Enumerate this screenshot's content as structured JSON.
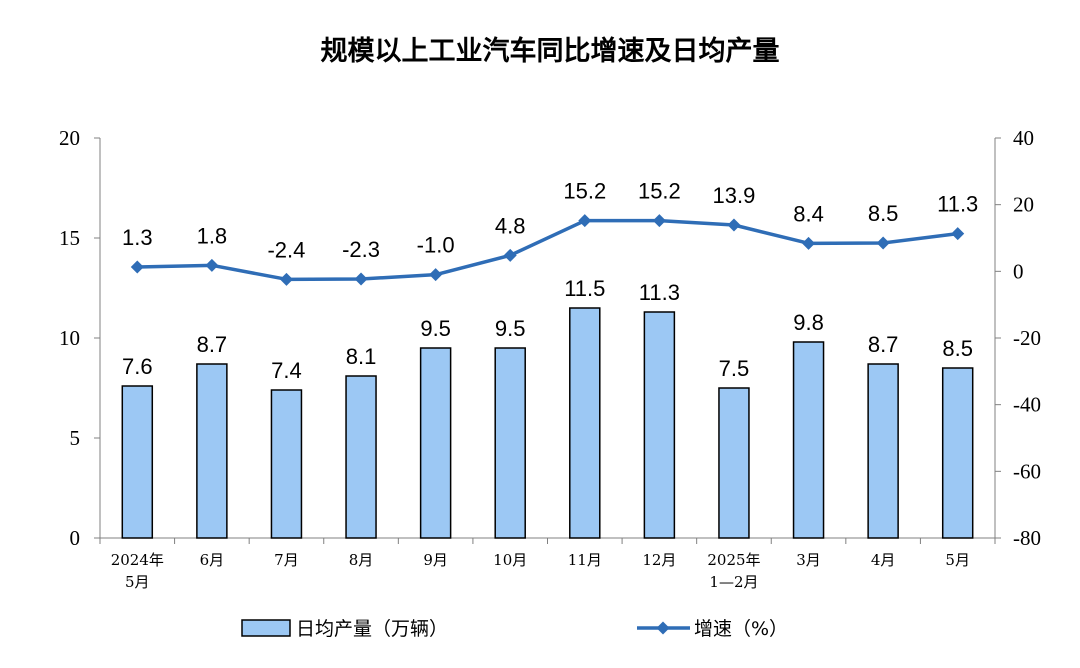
{
  "chart_data": {
    "type": "bar+line",
    "title": "规模以上工业汽车同比增速及日均产量",
    "categories": [
      [
        "2024年",
        "5月"
      ],
      [
        "6月"
      ],
      [
        "7月"
      ],
      [
        "8月"
      ],
      [
        "9月"
      ],
      [
        "10月"
      ],
      [
        "11月"
      ],
      [
        "12月"
      ],
      [
        "2025年",
        "1—2月"
      ],
      [
        "3月"
      ],
      [
        "4月"
      ],
      [
        "5月"
      ]
    ],
    "series": [
      {
        "name": "日均产量（万辆）",
        "type": "bar",
        "axis": "left",
        "values": [
          7.6,
          8.7,
          7.4,
          8.1,
          9.5,
          9.5,
          11.5,
          11.3,
          7.5,
          9.8,
          8.7,
          8.5
        ],
        "labels": [
          "7.6",
          "8.7",
          "7.4",
          "8.1",
          "9.5",
          "9.5",
          "11.5",
          "11.3",
          "7.5",
          "9.8",
          "8.7",
          "8.5"
        ]
      },
      {
        "name": "增速（%）",
        "type": "line",
        "axis": "right",
        "values": [
          1.3,
          1.8,
          -2.4,
          -2.3,
          -1.0,
          4.8,
          15.2,
          15.2,
          13.9,
          8.4,
          8.5,
          11.3
        ],
        "labels": [
          "1.3",
          "1.8",
          "-2.4",
          "-2.3",
          "-1.0",
          "4.8",
          "15.2",
          "15.2",
          "13.9",
          "8.4",
          "8.5",
          "11.3"
        ]
      }
    ],
    "y_left": {
      "min": 0,
      "max": 20,
      "ticks": [
        "0",
        "5",
        "10",
        "15",
        "20"
      ]
    },
    "y_right": {
      "min": -80,
      "max": 40,
      "ticks": [
        "-80",
        "-60",
        "-40",
        "-20",
        "0",
        "20",
        "40"
      ]
    },
    "grid": false,
    "legend_position": "bottom",
    "colors": {
      "bar_fill": "#9cc8f4",
      "bar_stroke": "#000000",
      "line": "#2f6db6",
      "axis": "#808080"
    }
  }
}
